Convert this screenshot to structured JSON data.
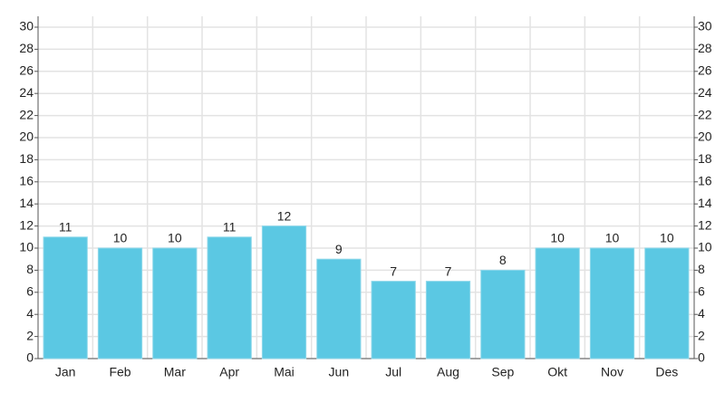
{
  "chart_data": {
    "type": "bar",
    "categories": [
      "Jan",
      "Feb",
      "Mar",
      "Apr",
      "Mai",
      "Jun",
      "Jul",
      "Aug",
      "Sep",
      "Okt",
      "Nov",
      "Des"
    ],
    "values": [
      11,
      10,
      10,
      11,
      12,
      9,
      7,
      7,
      8,
      10,
      10,
      10
    ],
    "color": "#5bc8e3",
    "ylim": [
      0,
      30
    ],
    "yticks": [
      0,
      2,
      4,
      6,
      8,
      10,
      12,
      14,
      16,
      18,
      20,
      22,
      24,
      26,
      28,
      30
    ],
    "grid": true
  }
}
